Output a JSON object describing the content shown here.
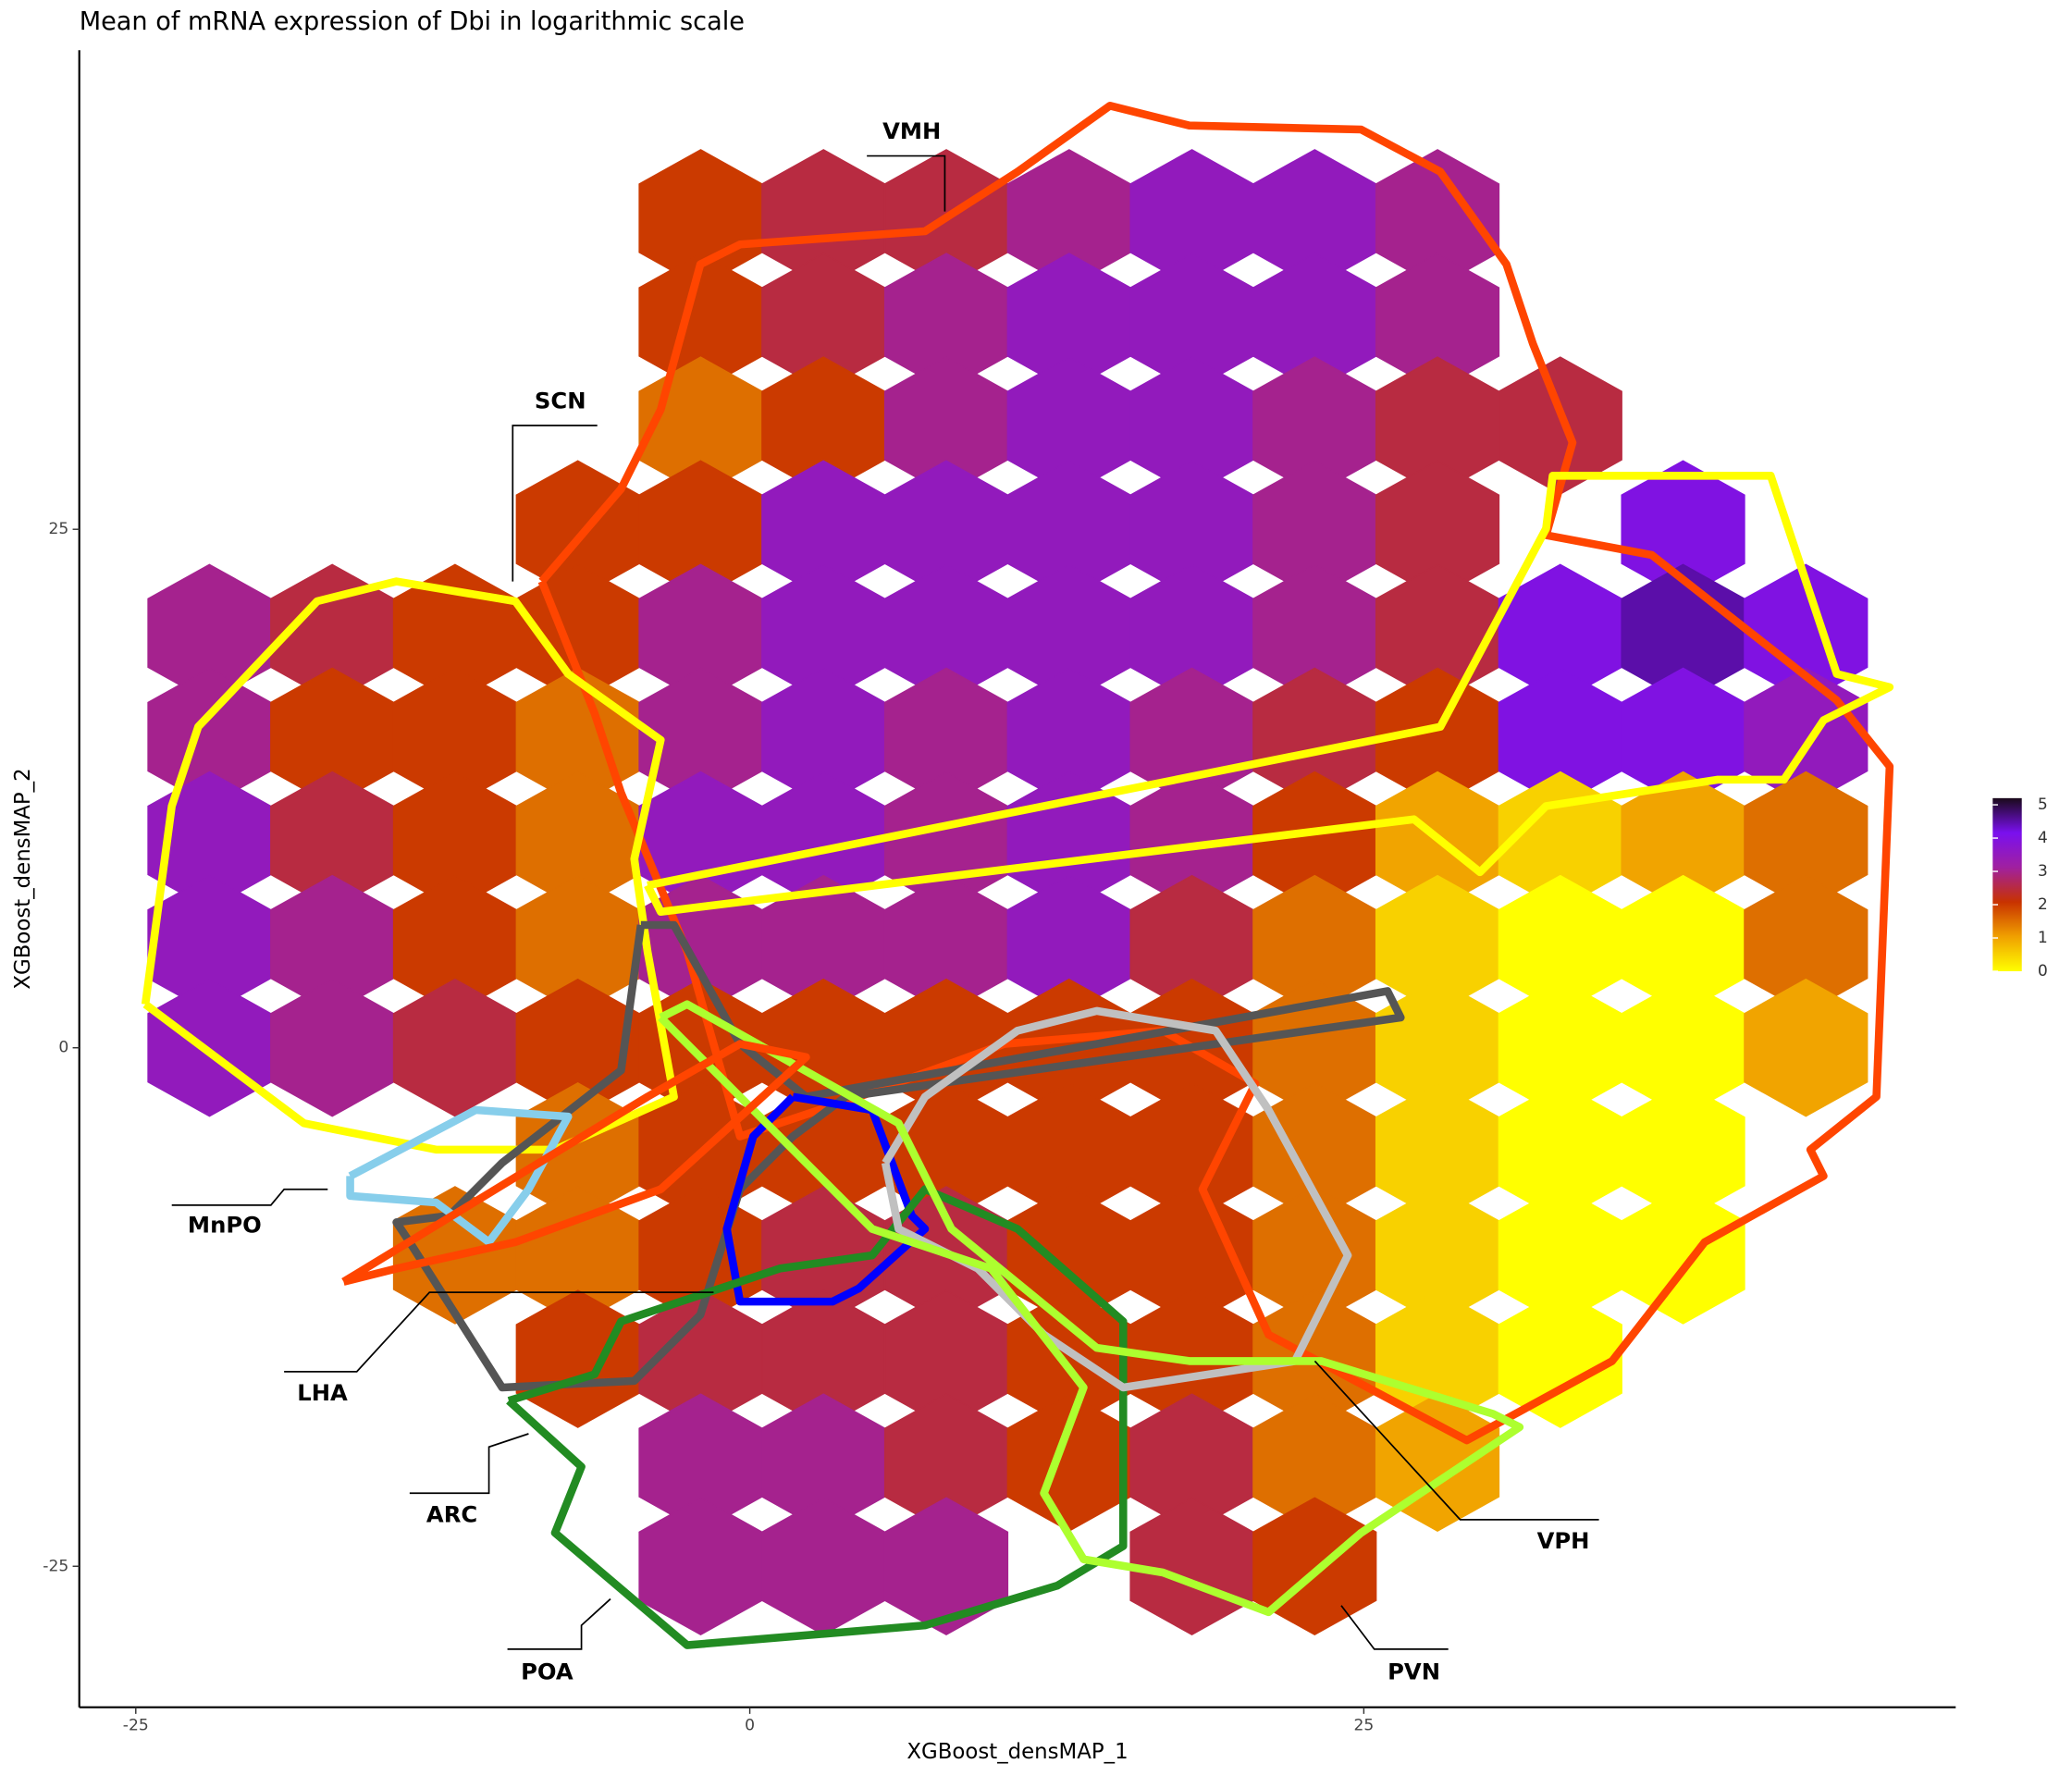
{
  "chart_data": {
    "type": "hexbin",
    "title": "Mean of mRNA expression of Dbi in logarithmic scale",
    "xlabel": "XGBoost_densMAP_1",
    "ylabel": "XGBoost_densMAP_2",
    "xlim": [
      -27.3,
      49.1
    ],
    "ylim": [
      -31.8,
      48.1
    ],
    "xticks": [
      -25,
      0,
      25
    ],
    "yticks": [
      -25,
      0,
      25
    ],
    "x": [
      -22,
      -17,
      -12,
      -7,
      -2,
      3,
      8,
      13,
      18,
      23,
      28,
      33,
      38,
      43
    ],
    "y": [
      40,
      35,
      30,
      25,
      20,
      15,
      10,
      5,
      0,
      -5,
      -10,
      -15,
      -20,
      -25
    ],
    "values": [
      [
        null,
        null,
        null,
        null,
        2,
        2.5,
        2.5,
        3,
        3.5,
        3.5,
        3,
        null,
        null,
        null
      ],
      [
        null,
        null,
        null,
        null,
        2,
        2.5,
        3,
        3.5,
        3.5,
        3.5,
        3,
        null,
        null,
        null
      ],
      [
        null,
        null,
        null,
        null,
        1.5,
        2,
        3,
        3.5,
        3.5,
        3,
        2.5,
        2.5,
        null,
        null
      ],
      [
        null,
        null,
        null,
        2,
        2,
        3.5,
        3.5,
        3.5,
        3.5,
        3,
        2.5,
        null,
        4,
        null
      ],
      [
        3,
        2.5,
        2,
        2,
        3,
        3.5,
        3.5,
        3.5,
        3.5,
        3,
        2.5,
        4,
        4.5,
        4
      ],
      [
        3,
        2,
        2,
        1.5,
        3,
        3.5,
        3,
        3.5,
        3,
        2.5,
        2,
        4,
        4,
        3.5
      ],
      [
        3.5,
        2.5,
        2,
        1.5,
        3.5,
        3.5,
        3,
        3.5,
        3,
        2,
        1,
        0.5,
        1,
        1.5
      ],
      [
        3.5,
        3,
        2,
        1.5,
        3,
        3,
        3,
        3.5,
        2.5,
        1.5,
        0.5,
        0,
        0,
        1.5
      ],
      [
        3.5,
        3,
        2.5,
        2,
        2,
        2,
        2,
        2,
        2,
        1.5,
        0.5,
        0,
        0,
        1
      ],
      [
        null,
        null,
        null,
        1.5,
        2,
        2,
        2,
        2,
        2,
        1.5,
        0.5,
        0,
        0,
        null
      ],
      [
        null,
        null,
        1.5,
        1.5,
        2,
        2.5,
        2.5,
        2,
        2,
        1.5,
        0.5,
        0,
        0,
        null
      ],
      [
        null,
        null,
        null,
        2,
        2.5,
        2.5,
        2.5,
        2,
        2,
        1.5,
        0.5,
        0,
        null,
        null
      ],
      [
        null,
        null,
        null,
        null,
        3,
        3,
        2.5,
        2,
        2.5,
        1.5,
        1,
        null,
        null,
        null
      ],
      [
        null,
        null,
        null,
        null,
        3,
        3,
        3,
        null,
        2.5,
        2,
        null,
        null,
        null,
        null
      ]
    ],
    "colorbar": {
      "lim": [
        0,
        5.2
      ],
      "ticks": [
        0,
        1,
        2,
        3,
        4,
        5
      ],
      "colors": [
        "#ffff00",
        "#f0a000",
        "#c83200",
        "#a020a0",
        "#7a10ee",
        "#1a0a1a"
      ]
    },
    "regions": [
      "VMH",
      "SCN",
      "MnPO",
      "LHA",
      "ARC",
      "POA",
      "VPH",
      "PVN"
    ]
  }
}
